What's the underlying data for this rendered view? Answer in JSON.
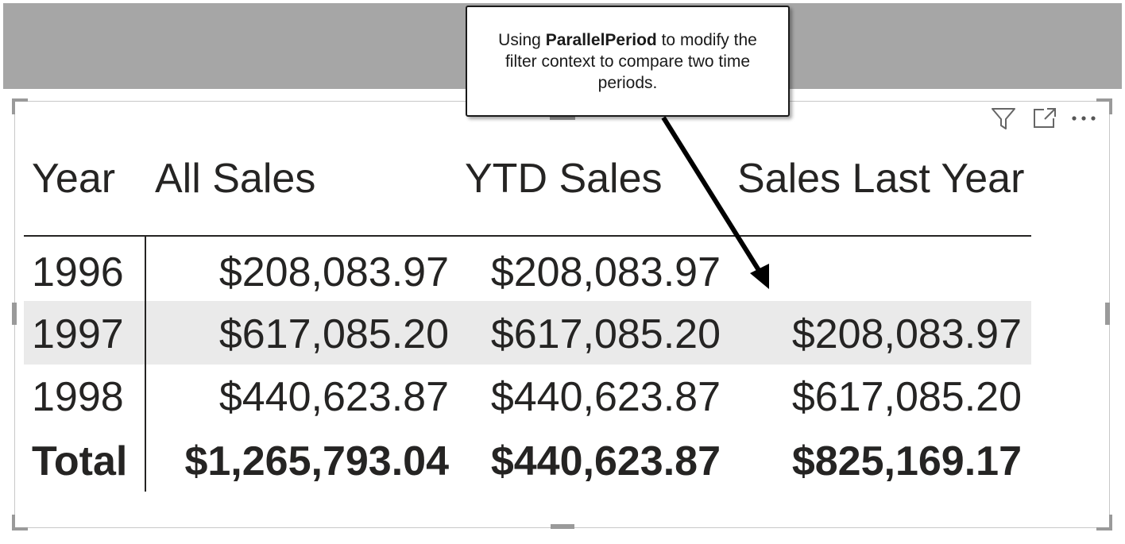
{
  "callout": {
    "prefix": "Using ",
    "keyword": "ParallelPeriod",
    "suffix": " to modify the filter context to compare two time periods."
  },
  "toolbar": {
    "icons": [
      "filter-icon",
      "focus-mode-icon",
      "more-options-icon"
    ]
  },
  "table": {
    "columns": [
      "Year",
      "All Sales",
      "YTD Sales",
      "Sales Last Year"
    ],
    "rows": [
      {
        "year": "1996",
        "all_sales": "$208,083.97",
        "ytd_sales": "$208,083.97",
        "sales_last_year": ""
      },
      {
        "year": "1997",
        "all_sales": "$617,085.20",
        "ytd_sales": "$617,085.20",
        "sales_last_year": "$208,083.97"
      },
      {
        "year": "1998",
        "all_sales": "$440,623.87",
        "ytd_sales": "$440,623.87",
        "sales_last_year": "$617,085.20"
      }
    ],
    "total": {
      "label": "Total",
      "all_sales": "$1,265,793.04",
      "ytd_sales": "$440,623.87",
      "sales_last_year": "$825,169.17"
    }
  },
  "colors": {
    "header_band": "#a6a6a6",
    "text": "#252423",
    "row_highlight": "#eaeaea",
    "frame": "#c8c8c8"
  }
}
